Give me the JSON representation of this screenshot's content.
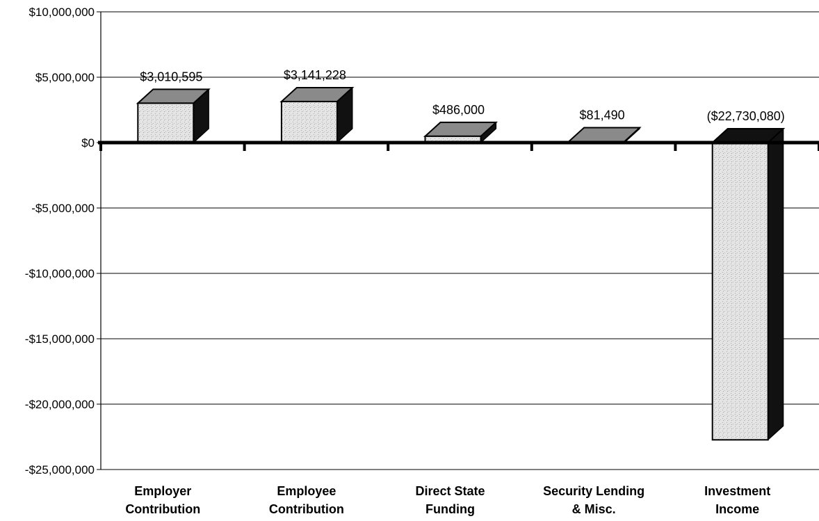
{
  "chart_data": {
    "type": "bar",
    "categories": [
      [
        "Employer",
        "Contribution"
      ],
      [
        "Employee",
        "Contribution"
      ],
      [
        "Direct State",
        "Funding"
      ],
      [
        "Security Lending",
        "& Misc."
      ],
      [
        "Investment",
        "Income"
      ]
    ],
    "values": [
      3010595,
      3141228,
      486000,
      81490,
      -22730080
    ],
    "data_labels": [
      "$3,010,595",
      "$3,141,228",
      "$486,000",
      "$81,490",
      "($22,730,080)"
    ],
    "ylim": [
      -25000000,
      10000000
    ],
    "ytick_values": [
      10000000,
      5000000,
      0,
      -5000000,
      -10000000,
      -15000000,
      -20000000,
      -25000000
    ],
    "ytick_labels": [
      "$10,000,000",
      "$5,000,000",
      "$0",
      "-$5,000,000",
      "-$10,000,000",
      "-$15,000,000",
      "-$20,000,000",
      "-$25,000,000"
    ],
    "grid": true,
    "style": "3d-bar",
    "colors": {
      "bar_face": "#e2e2e2",
      "bar_side": "#111111",
      "bar_top": "#8a8a8a",
      "axis": "#000000",
      "grid": "#000000"
    }
  }
}
